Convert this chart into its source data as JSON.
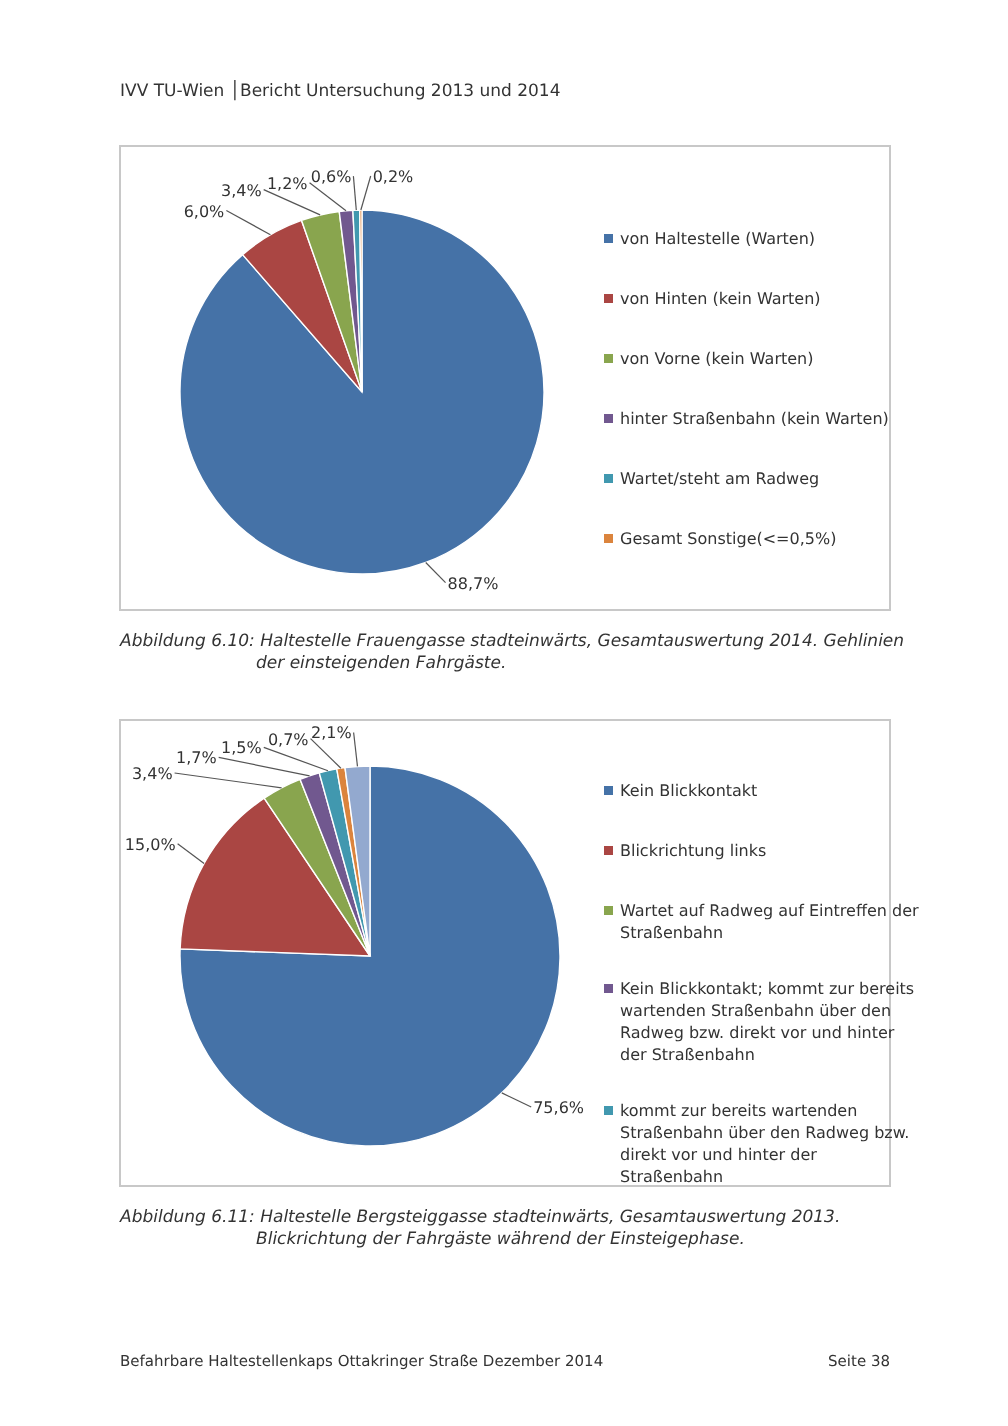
{
  "chart_data": [
    {
      "type": "pie",
      "categories": [
        "von Haltestelle (Warten)",
        "von Hinten (kein Warten)",
        "von Vorne (kein Warten)",
        "hinter Straßenbahn (kein Warten)",
        "Wartet/steht am Radweg",
        "Gesamt Sonstige(<=0,5%)"
      ],
      "values": [
        88.7,
        6.0,
        3.4,
        1.2,
        0.6,
        0.2
      ],
      "value_labels": [
        "88,7%",
        "6,0%",
        "3,4%",
        "1,2%",
        "0,6%",
        "0,2%"
      ],
      "colors": [
        "#4572a7",
        "#aa4643",
        "#89a54e",
        "#71588f",
        "#4198af",
        "#db843d"
      ],
      "legend": "right",
      "annotations": [
        "IVV TU-Wien │Bericht Untersuchung 2013 und 2014",
        "Abbildung 6.10: Haltestelle Frauengasse stadteinwärts, Gesamtauswertung 2014. Gehlinien der einsteigenden Fahrgäste."
      ]
    },
    {
      "type": "pie",
      "categories": [
        "Kein Blickkontakt",
        "Blickrichtung links",
        "Wartet auf Radweg auf Eintreffen der Straßenbahn",
        "Kein Blickkontakt; kommt zur bereits wartenden Straßenbahn über den Radweg bzw. direkt vor und hinter der Straßenbahn",
        "kommt zur bereits wartenden Straßenbahn über den Radweg bzw. direkt vor und hinter der Straßenbahn",
        null,
        null
      ],
      "values": [
        75.6,
        15.0,
        3.4,
        1.7,
        1.5,
        0.7,
        2.1
      ],
      "value_labels": [
        "75,6%",
        "15,0%",
        "3,4%",
        "1,7%",
        "1,5%",
        "0,7%",
        "2,1%"
      ],
      "colors": [
        "#4572a7",
        "#aa4643",
        "#89a54e",
        "#71588f",
        "#4198af",
        "#db843d",
        "#93a9cf"
      ],
      "legend": "right",
      "annotations": [
        "Abbildung 6.11: Haltestelle Bergsteiggasse stadteinwärts, Gesamtauswertung 2013. Blickrichtung der Fahrgäste während der Einsteigephase.",
        "Befahrbare Haltestellenkaps Ottakringer Straße Dezember 2014",
        "Seite 38"
      ]
    }
  ]
}
